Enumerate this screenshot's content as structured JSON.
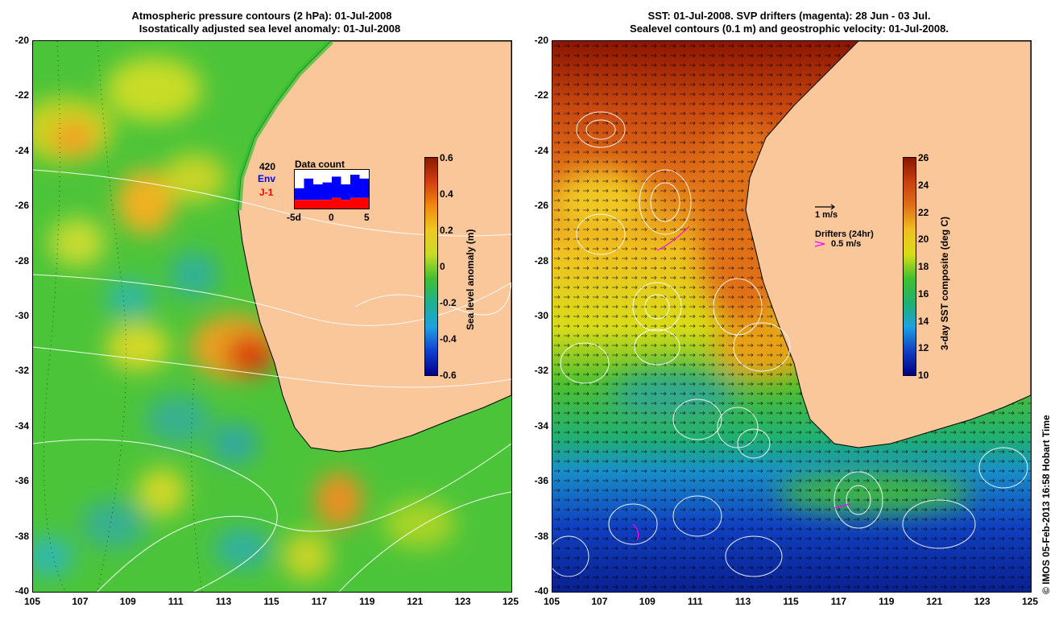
{
  "left_panel": {
    "title_line1": "Atmospheric pressure contours (2 hPa): 01-Jul-2008",
    "title_line2": "Isostatically adjusted sea level anomaly: 01-Jul-2008",
    "y_ticks": [
      "-20",
      "-22",
      "-24",
      "-26",
      "-28",
      "-30",
      "-32",
      "-34",
      "-36",
      "-38",
      "-40"
    ],
    "x_ticks": [
      "105",
      "107",
      "109",
      "111",
      "113",
      "115",
      "117",
      "119",
      "121",
      "123",
      "125"
    ],
    "colorbar": {
      "label": "Sea level anomaly (m)",
      "ticks": [
        "0.6",
        "0.4",
        "0.2",
        "0",
        "-0.2",
        "-0.4",
        "-0.6"
      ]
    },
    "inset": {
      "count": "420",
      "env_label": "Env",
      "j1_label": "J-1",
      "title": "Data count",
      "x_ticks": [
        "-5d",
        "0",
        "5"
      ],
      "env_values": [
        0.3,
        0.55,
        0.4,
        0.45,
        0.55,
        0.4,
        0.6,
        0.5
      ],
      "j1_values": [
        0.45,
        0.45,
        0.45,
        0.45,
        0.55,
        0.45,
        0.55,
        0.55
      ],
      "colors": {
        "env": "#0000ff",
        "j1": "#ff0000"
      }
    }
  },
  "right_panel": {
    "title_line1": "SST: 01-Jul-2008. SVP drifters (magenta): 28 Jun - 03 Jul.",
    "title_line2": "Sealevel contours (0.1 m) and geostrophic velocity: 01-Jul-2008.",
    "y_ticks": [
      "-20",
      "-22",
      "-24",
      "-26",
      "-28",
      "-30",
      "-32",
      "-34",
      "-36",
      "-38",
      "-40"
    ],
    "x_ticks": [
      "105",
      "107",
      "109",
      "111",
      "113",
      "115",
      "117",
      "119",
      "121",
      "123",
      "125"
    ],
    "colorbar": {
      "label": "3-day SST composite (deg C)",
      "ticks": [
        "26",
        "24",
        "22",
        "20",
        "18",
        "16",
        "14",
        "12",
        "10"
      ]
    },
    "legend": {
      "velocity": "1 m/s",
      "drifters_title": "Drifters (24hr)",
      "drifters_speed": "0.5 m/s"
    }
  },
  "credit": "© IMOS 05-Feb-2013 16:58 Hobart Time",
  "colors": {
    "land": "#f9c79a",
    "drifter": "#ff00ff"
  }
}
